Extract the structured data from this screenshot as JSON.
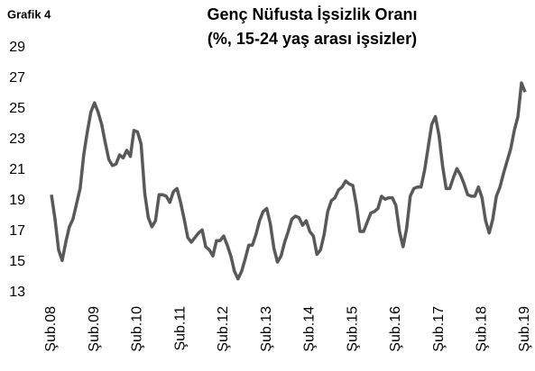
{
  "chart_data": {
    "type": "line",
    "label": "Grafik 4",
    "title": "Genç Nüfusta İşsizlik Oranı",
    "subtitle": "(%, 15-24 yaş arası işsizler)",
    "categories": [
      "Şub.08",
      null,
      null,
      null,
      null,
      null,
      null,
      null,
      null,
      null,
      null,
      null,
      "Şub.09",
      null,
      null,
      null,
      null,
      null,
      null,
      null,
      null,
      null,
      null,
      null,
      "Şub.10",
      null,
      null,
      null,
      null,
      null,
      null,
      null,
      null,
      null,
      null,
      null,
      "Şub.11",
      null,
      null,
      null,
      null,
      null,
      null,
      null,
      null,
      null,
      null,
      null,
      "Şub.12",
      null,
      null,
      null,
      null,
      null,
      null,
      null,
      null,
      null,
      null,
      null,
      "Şub.13",
      null,
      null,
      null,
      null,
      null,
      null,
      null,
      null,
      null,
      null,
      null,
      "Şub.14",
      null,
      null,
      null,
      null,
      null,
      null,
      null,
      null,
      null,
      null,
      null,
      "Şub.15",
      null,
      null,
      null,
      null,
      null,
      null,
      null,
      null,
      null,
      null,
      null,
      "Şub.16",
      null,
      null,
      null,
      null,
      null,
      null,
      null,
      null,
      null,
      null,
      null,
      "Şub.17",
      null,
      null,
      null,
      null,
      null,
      null,
      null,
      null,
      null,
      null,
      null,
      "Şub.18",
      null,
      null,
      null,
      null,
      null,
      null,
      null,
      null,
      null,
      null,
      null,
      "Şub.19"
    ],
    "series": [
      {
        "color": "#595959",
        "values": [
          19.4,
          17.8,
          15.8,
          15.1,
          16.3,
          17.3,
          17.8,
          18.8,
          19.8,
          22.0,
          23.5,
          24.8,
          25.4,
          24.8,
          24.0,
          22.8,
          21.7,
          21.3,
          21.4,
          22.0,
          21.8,
          22.3,
          21.9,
          23.6,
          23.5,
          22.7,
          19.5,
          17.9,
          17.3,
          17.7,
          19.4,
          19.4,
          19.3,
          18.9,
          19.6,
          19.8,
          18.9,
          17.8,
          16.6,
          16.3,
          16.6,
          16.9,
          17.1,
          16.0,
          15.8,
          15.4,
          16.4,
          16.4,
          16.7,
          16.1,
          15.4,
          14.4,
          13.9,
          14.4,
          15.2,
          16.1,
          16.1,
          16.8,
          17.7,
          18.3,
          18.5,
          17.5,
          15.9,
          15.0,
          15.4,
          16.3,
          17.0,
          17.8,
          18.0,
          17.9,
          17.4,
          17.7,
          17.0,
          16.7,
          15.5,
          15.8,
          16.8,
          18.3,
          19.0,
          19.2,
          19.7,
          19.9,
          20.3,
          20.1,
          20.0,
          18.7,
          17.0,
          17.0,
          17.6,
          18.2,
          18.3,
          18.5,
          19.3,
          19.1,
          19.2,
          19.2,
          18.7,
          17.0,
          16.0,
          17.2,
          19.3,
          19.8,
          19.9,
          19.9,
          21.0,
          22.5,
          24.0,
          24.5,
          23.3,
          21.3,
          19.8,
          19.8,
          20.5,
          21.1,
          20.7,
          20.1,
          19.4,
          19.3,
          19.3,
          19.9,
          19.2,
          17.7,
          16.9,
          17.8,
          19.3,
          19.9,
          20.8,
          21.6,
          22.4,
          23.6,
          24.5,
          26.7,
          26.1
        ]
      }
    ],
    "ylim": [
      13,
      29
    ],
    "yticks": [
      13,
      15,
      17,
      19,
      21,
      23,
      25,
      27,
      29
    ]
  }
}
